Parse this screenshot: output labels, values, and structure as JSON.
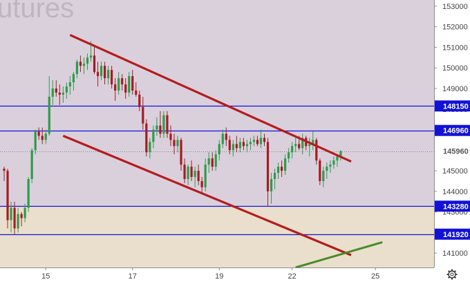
{
  "watermark": "utures",
  "settings_icon": "gear-icon",
  "colors": {
    "background": "#d9d0dc",
    "lower_band": "#e9dfcc",
    "axis_background": "#ffffff",
    "bull": "#2e9b4a",
    "bear": "#a51b22",
    "trend": "#b51c1c",
    "green_line": "#4a8a2a",
    "level": "#1212d6",
    "label_text": "#ffffff",
    "current_price_line": "#8a8a8a"
  },
  "chart_data": {
    "type": "candlestick",
    "title": "",
    "xlabel": "",
    "ylabel": "",
    "x_ticks": [
      "15",
      "17",
      "19",
      "22",
      "25"
    ],
    "y_ticks": [
      141000,
      142000,
      143000,
      144000,
      145000,
      146000,
      147000,
      148000,
      149000,
      150000,
      151000,
      152000,
      153000
    ],
    "ylim": [
      140300,
      153300
    ],
    "grid": false,
    "current_price": 145960,
    "levels": [
      {
        "value": 148150,
        "label": "148150"
      },
      {
        "value": 146960,
        "label": "146960"
      },
      {
        "value": 145960,
        "label": "145960"
      },
      {
        "value": 143280,
        "label": "143280"
      },
      {
        "value": 141920,
        "label": "141920"
      }
    ],
    "trendlines": [
      {
        "name": "upper-channel",
        "from": {
          "bar": 19,
          "value": 151600
        },
        "to": {
          "bar": 100,
          "value": 145450
        }
      },
      {
        "name": "lower-channel",
        "from": {
          "bar": 17,
          "value": 146700
        },
        "to": {
          "bar": 100,
          "value": 140900
        }
      },
      {
        "name": "support-green",
        "from": {
          "bar": 84,
          "value": 140300
        },
        "to": {
          "bar": 109,
          "value": 141530
        }
      }
    ],
    "candles": [
      [
        145100,
        145200,
        144500,
        145000
      ],
      [
        145000,
        145100,
        142200,
        142600
      ],
      [
        142600,
        143500,
        142000,
        143200
      ],
      [
        143200,
        143500,
        141900,
        142200
      ],
      [
        142200,
        143200,
        142000,
        142900
      ],
      [
        142900,
        143000,
        142300,
        142700
      ],
      [
        142700,
        143400,
        142500,
        143200
      ],
      [
        143200,
        144700,
        143000,
        144600
      ],
      [
        144600,
        146100,
        144400,
        146000
      ],
      [
        146000,
        147000,
        145800,
        146900
      ],
      [
        146900,
        147100,
        146500,
        146700
      ],
      [
        146700,
        147100,
        146300,
        146500
      ],
      [
        146500,
        147000,
        146300,
        146800
      ],
      [
        146800,
        149600,
        146700,
        148600
      ],
      [
        148600,
        149400,
        148200,
        149000
      ],
      [
        149000,
        149400,
        148600,
        148800
      ],
      [
        148800,
        149200,
        148200,
        148700
      ],
      [
        148700,
        149100,
        148300,
        148800
      ],
      [
        148800,
        149300,
        148500,
        149100
      ],
      [
        149100,
        149600,
        148700,
        149300
      ],
      [
        149300,
        149800,
        148900,
        149700
      ],
      [
        149700,
        150400,
        149500,
        150300
      ],
      [
        150300,
        150600,
        149800,
        150100
      ],
      [
        150100,
        150500,
        149700,
        150200
      ],
      [
        150200,
        150700,
        149900,
        150500
      ],
      [
        150500,
        151300,
        150300,
        150600
      ],
      [
        150600,
        151100,
        149700,
        149800
      ],
      [
        149800,
        150300,
        149100,
        149600
      ],
      [
        149600,
        150300,
        149400,
        150100
      ],
      [
        150100,
        150300,
        149200,
        149500
      ],
      [
        149500,
        150100,
        149200,
        149900
      ],
      [
        149900,
        150100,
        149000,
        149200
      ],
      [
        149200,
        149500,
        148400,
        148900
      ],
      [
        148900,
        149800,
        148700,
        149500
      ],
      [
        149500,
        149700,
        148900,
        149200
      ],
      [
        149200,
        149500,
        148500,
        148800
      ],
      [
        148800,
        149800,
        148600,
        149600
      ],
      [
        149600,
        149900,
        148700,
        148900
      ],
      [
        148900,
        149300,
        148600,
        148700
      ],
      [
        148700,
        148900,
        147900,
        148100
      ],
      [
        148100,
        148600,
        147000,
        147300
      ],
      [
        147300,
        147500,
        145700,
        145900
      ],
      [
        145900,
        146600,
        145600,
        146400
      ],
      [
        146400,
        147200,
        146100,
        147000
      ],
      [
        147000,
        147600,
        146700,
        147200
      ],
      [
        147200,
        147900,
        146600,
        146800
      ],
      [
        146800,
        147900,
        146600,
        147700
      ],
      [
        147700,
        147900,
        146600,
        146800
      ],
      [
        146800,
        147200,
        146200,
        146500
      ],
      [
        146500,
        146800,
        145800,
        146200
      ],
      [
        146200,
        146700,
        145900,
        146500
      ],
      [
        146500,
        146600,
        145000,
        145300
      ],
      [
        145300,
        145600,
        144400,
        144600
      ],
      [
        144600,
        145300,
        144300,
        145200
      ],
      [
        145200,
        145500,
        144500,
        144700
      ],
      [
        144700,
        145200,
        144200,
        145000
      ],
      [
        145000,
        145300,
        144300,
        144500
      ],
      [
        144500,
        144700,
        143900,
        144200
      ],
      [
        144200,
        145600,
        144000,
        145300
      ],
      [
        145300,
        145900,
        144900,
        145600
      ],
      [
        145600,
        145900,
        145000,
        145200
      ],
      [
        145200,
        146000,
        145000,
        145800
      ],
      [
        145800,
        146500,
        145500,
        146300
      ],
      [
        146300,
        147000,
        146100,
        146800
      ],
      [
        146800,
        147100,
        146200,
        146500
      ],
      [
        146500,
        146700,
        145800,
        146000
      ],
      [
        146000,
        146500,
        145700,
        146300
      ],
      [
        146300,
        146700,
        145900,
        146100
      ],
      [
        146100,
        146600,
        145900,
        146400
      ],
      [
        146400,
        146600,
        146000,
        146200
      ],
      [
        146200,
        146500,
        145900,
        146300
      ],
      [
        146300,
        146600,
        146000,
        146400
      ],
      [
        146400,
        146700,
        146200,
        146500
      ],
      [
        146500,
        146700,
        146200,
        146300
      ],
      [
        146300,
        147000,
        146100,
        146600
      ],
      [
        146600,
        146800,
        146200,
        146400
      ],
      [
        146400,
        146600,
        143300,
        144000
      ],
      [
        144000,
        144900,
        143400,
        144600
      ],
      [
        144600,
        145100,
        144100,
        144900
      ],
      [
        144900,
        145400,
        144600,
        145200
      ],
      [
        145200,
        145500,
        144700,
        145000
      ],
      [
        145000,
        145800,
        144800,
        145600
      ],
      [
        145600,
        146100,
        145400,
        145900
      ],
      [
        145900,
        146400,
        145600,
        146200
      ],
      [
        146200,
        146600,
        145900,
        146300
      ],
      [
        146300,
        146700,
        146000,
        146100
      ],
      [
        146100,
        146800,
        145800,
        146600
      ],
      [
        146600,
        146700,
        146000,
        146200
      ],
      [
        146200,
        146600,
        145700,
        146300
      ],
      [
        146300,
        146900,
        146000,
        146500
      ],
      [
        146500,
        146600,
        145300,
        145500
      ],
      [
        145500,
        145600,
        144300,
        144500
      ],
      [
        144500,
        145200,
        144200,
        145000
      ],
      [
        145000,
        145400,
        144600,
        145200
      ],
      [
        145200,
        145500,
        144900,
        145300
      ],
      [
        145300,
        145700,
        145100,
        145500
      ],
      [
        145500,
        145800,
        145200,
        145700
      ],
      [
        145700,
        146000,
        145500,
        145960
      ]
    ]
  },
  "levels_meta": {
    "label_width_units": "price"
  }
}
